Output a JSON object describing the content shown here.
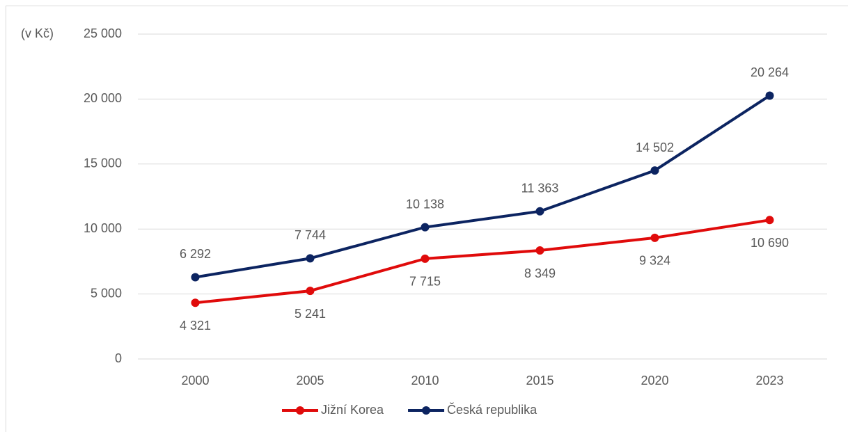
{
  "chart_data": {
    "type": "line",
    "y_label": "(v Kč)",
    "categories": [
      "2000",
      "2005",
      "2010",
      "2015",
      "2020",
      "2023"
    ],
    "series": [
      {
        "name": "Jižní Korea",
        "color": "#e00b0b",
        "values": [
          4321,
          5241,
          7715,
          8349,
          9324,
          10690
        ],
        "value_labels": [
          "4 321",
          "5 241",
          "7 715",
          "8 349",
          "9 324",
          "10 690"
        ]
      },
      {
        "name": "Česká republika",
        "color": "#0c2461",
        "values": [
          6292,
          7744,
          10138,
          11363,
          14502,
          20264
        ],
        "value_labels": [
          "6 292",
          "7 744",
          "10 138",
          "11 363",
          "14 502",
          "20 264"
        ]
      }
    ],
    "ylim": [
      0,
      25000
    ],
    "yticks": [
      {
        "value": 0,
        "label": "0"
      },
      {
        "value": 5000,
        "label": "5 000"
      },
      {
        "value": 10000,
        "label": "10 000"
      },
      {
        "value": 15000,
        "label": "15 000"
      },
      {
        "value": 20000,
        "label": "20 000"
      },
      {
        "value": 25000,
        "label": "25 000"
      }
    ],
    "grid": true,
    "legend": "bottom"
  }
}
